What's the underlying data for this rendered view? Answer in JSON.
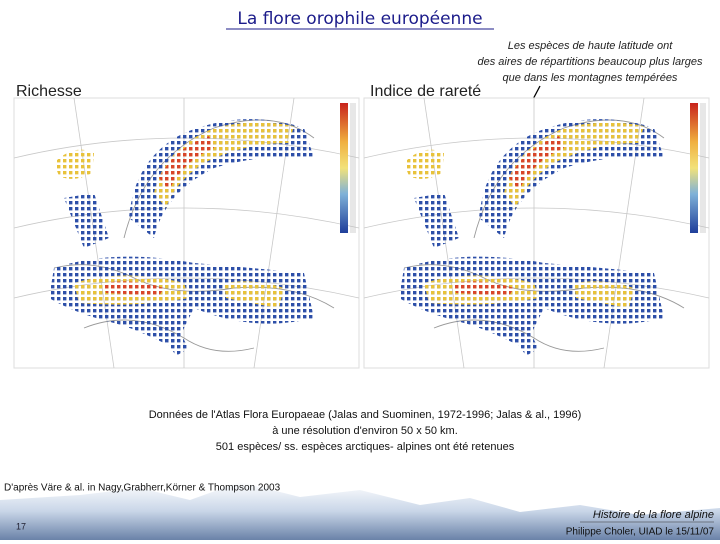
{
  "title": "La flore orophile européenne",
  "annotation": [
    "Les espèces de haute latitude ont",
    "des aires de répartitions beaucoup plus larges",
    "que dans les montagnes tempérées"
  ],
  "maps": [
    {
      "label": "Richesse"
    },
    {
      "label": "Indice de rareté"
    }
  ],
  "caption": [
    "Données de l'Atlas Flora Europaeae (Jalas and Suominen, 1972-1996; Jalas & al., 1996)",
    "à une résolution d'environ 50 x 50 km.",
    "501 espèces/ ss. espèces arctiques- alpines ont été retenues"
  ],
  "source": "D'après Väre & al. in Nagy,Grabherr,Körner & Thompson 2003",
  "footer": {
    "course": "Histoire de la flore alpine",
    "author": "Philippe Choler, UIAD le 15/11/07",
    "page": "17"
  }
}
